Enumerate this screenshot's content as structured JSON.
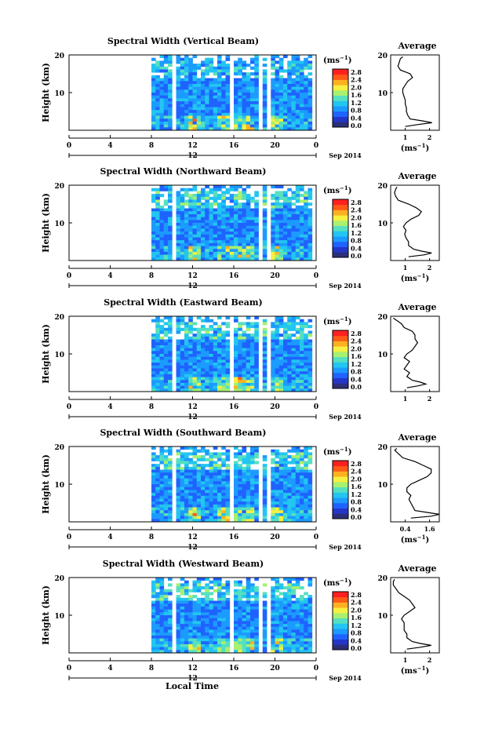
{
  "xlabel_bottom": "Local Time",
  "date_label": "Sep 2014",
  "colorbar": {
    "unit_base": "(ms",
    "unit_exp": "−1",
    "unit_close": ")",
    "ticks": [
      "2.8",
      "2.4",
      "2.0",
      "1.6",
      "1.2",
      "0.8",
      "0.4",
      "0.0"
    ],
    "colors": [
      "#2b2f7a",
      "#2436c8",
      "#1f63ff",
      "#1c9bff",
      "#22c6f0",
      "#56e0c0",
      "#a8f070",
      "#f6f040",
      "#ffb020",
      "#ff5a18",
      "#ff2020"
    ]
  },
  "chart_data": [
    {
      "type": "heatmap",
      "title": "Spectral Width (Vertical Beam)",
      "ylabel": "Height (km)",
      "x_ticks": [
        "0",
        "4",
        "8",
        "12",
        "16",
        "20",
        "0"
      ],
      "secondary_x_label": "12",
      "y_ticks": [
        "20",
        "10"
      ],
      "xlim": [
        0,
        24
      ],
      "ylim": [
        0,
        20
      ],
      "data_gaps_hours": [
        [
          10.2,
          10.5
        ],
        [
          15.6,
          15.9
        ],
        [
          18.4,
          18.7
        ],
        [
          19.2,
          19.5
        ]
      ],
      "data_start_hour": 7.9,
      "average_profile": {
        "title": "Average",
        "xlabel_base": "(ms",
        "xlabel_exp": "−1",
        "xlabel_close": ")",
        "x_ticks": [
          "1",
          "2"
        ],
        "y_ticks": [
          "20",
          "10"
        ],
        "xlim": [
          0.5,
          2.5
        ],
        "height_km": [
          1,
          1.5,
          2,
          2.5,
          3,
          4,
          5,
          6,
          7,
          8,
          9,
          10,
          11,
          12,
          13,
          14,
          15,
          16,
          17,
          18,
          19,
          19.5
        ],
        "value": [
          1.1,
          1.6,
          2.2,
          1.8,
          1.3,
          1.2,
          1.15,
          1.15,
          1.1,
          1.1,
          1.05,
          1.0,
          1.0,
          1.1,
          1.2,
          1.4,
          1.3,
          0.9,
          0.8,
          0.85,
          0.9,
          1.0
        ]
      }
    },
    {
      "type": "heatmap",
      "title": "Spectral Width (Northward Beam)",
      "ylabel": "Height (km)",
      "x_ticks": [
        "0",
        "4",
        "8",
        "12",
        "16",
        "20",
        "0"
      ],
      "secondary_x_label": "12",
      "y_ticks": [
        "20",
        "10"
      ],
      "xlim": [
        0,
        24
      ],
      "ylim": [
        0,
        20
      ],
      "data_gaps_hours": [
        [
          10.2,
          10.5
        ],
        [
          18.4,
          18.7
        ],
        [
          19.2,
          19.5
        ]
      ],
      "data_start_hour": 7.9,
      "average_profile": {
        "title": "Average",
        "xlabel_base": "(ms",
        "xlabel_exp": "−1",
        "xlabel_close": ")",
        "x_ticks": [
          "1",
          "2"
        ],
        "y_ticks": [
          "20",
          "10"
        ],
        "xlim": [
          0.3,
          2.2
        ],
        "height_km": [
          1,
          1.5,
          2,
          2.5,
          3,
          4,
          5,
          6,
          7,
          8,
          9,
          10,
          11,
          12,
          13,
          14,
          15,
          16,
          17,
          18,
          19,
          19.5
        ],
        "value": [
          1.0,
          1.6,
          1.9,
          1.5,
          1.2,
          1.0,
          1.0,
          0.9,
          0.85,
          0.9,
          0.8,
          0.9,
          1.1,
          1.4,
          1.5,
          1.3,
          1.0,
          0.6,
          0.5,
          0.45,
          0.5,
          0.55
        ]
      }
    },
    {
      "type": "heatmap",
      "title": "Spectral Width (Eastward Beam)",
      "ylabel": "Height (km)",
      "x_ticks": [
        "0",
        "4",
        "8",
        "12",
        "16",
        "20",
        "0"
      ],
      "secondary_x_label": "12",
      "y_ticks": [
        "20",
        "10"
      ],
      "xlim": [
        0,
        24
      ],
      "ylim": [
        0,
        20
      ],
      "data_gaps_hours": [
        [
          10.2,
          10.5
        ],
        [
          15.6,
          15.9
        ],
        [
          18.4,
          18.7
        ],
        [
          19.2,
          19.5
        ]
      ],
      "data_start_hour": 8.1,
      "average_profile": {
        "title": "Average",
        "xlabel_base": "",
        "xlabel_exp": "",
        "xlabel_close": "",
        "x_ticks": [
          "1",
          "2"
        ],
        "y_ticks": [
          "20",
          "10"
        ],
        "xlim": [
          0.4,
          2.2
        ],
        "height_km": [
          1,
          1.5,
          2,
          2.5,
          3,
          4,
          5,
          6,
          7,
          8,
          9,
          10,
          11,
          12,
          13,
          14,
          15,
          16,
          17,
          18,
          19,
          19.5
        ],
        "value": [
          1.0,
          1.4,
          1.7,
          1.5,
          1.2,
          1.0,
          1.1,
          0.9,
          1.0,
          1.1,
          0.9,
          1.0,
          1.2,
          1.3,
          1.4,
          1.3,
          1.3,
          1.2,
          0.9,
          0.8,
          0.6,
          0.5
        ]
      }
    },
    {
      "type": "heatmap",
      "title": "Spectral Width (Southward Beam)",
      "ylabel": "Height (km)",
      "x_ticks": [
        "0",
        "4",
        "8",
        "12",
        "16",
        "20",
        "0"
      ],
      "secondary_x_label": "12",
      "y_ticks": [
        "20",
        "10"
      ],
      "xlim": [
        0,
        24
      ],
      "ylim": [
        0,
        20
      ],
      "data_gaps_hours": [
        [
          10.2,
          10.5
        ],
        [
          15.6,
          15.9
        ],
        [
          18.4,
          18.7
        ],
        [
          19.2,
          19.5
        ]
      ],
      "data_start_hour": 7.9,
      "average_profile": {
        "title": "Average",
        "xlabel_base": "(ms",
        "xlabel_exp": "−1",
        "xlabel_close": ")",
        "x_ticks": [
          "0.4",
          "1.6"
        ],
        "y_ticks": [
          "20",
          "10"
        ],
        "xlim": [
          0.4,
          1.6
        ],
        "height_km": [
          1,
          1.5,
          2,
          2.5,
          3,
          4,
          5,
          6,
          7,
          8,
          9,
          10,
          11,
          12,
          13,
          14,
          15,
          16,
          17,
          18,
          19,
          19.5
        ],
        "value": [
          0.9,
          1.4,
          1.6,
          1.3,
          1.0,
          0.95,
          0.9,
          0.85,
          0.9,
          0.8,
          0.8,
          0.9,
          1.1,
          1.3,
          1.4,
          1.4,
          1.2,
          1.0,
          0.7,
          0.6,
          0.5,
          0.55
        ]
      }
    },
    {
      "type": "heatmap",
      "title": "Spectral Width (Westward Beam)",
      "ylabel": "Height (km)",
      "x_ticks": [
        "0",
        "4",
        "8",
        "12",
        "16",
        "20",
        "0"
      ],
      "secondary_x_label": "12",
      "y_ticks": [
        "20",
        "10"
      ],
      "xlim": [
        0,
        24
      ],
      "ylim": [
        0,
        20
      ],
      "data_gaps_hours": [
        [
          10.2,
          10.5
        ],
        [
          15.6,
          15.9
        ],
        [
          18.4,
          18.7
        ],
        [
          19.2,
          19.5
        ]
      ],
      "data_start_hour": 7.9,
      "average_profile": {
        "title": "Average",
        "xlabel_base": "(ms",
        "xlabel_exp": "−1",
        "xlabel_close": ")",
        "x_ticks": [
          "1",
          "2"
        ],
        "y_ticks": [
          "20",
          "10"
        ],
        "xlim": [
          0.5,
          2.3
        ],
        "height_km": [
          1,
          1.5,
          2,
          2.5,
          3,
          4,
          5,
          6,
          7,
          8,
          9,
          10,
          11,
          12,
          13,
          14,
          15,
          16,
          17,
          18,
          19,
          19.5
        ],
        "value": [
          1.1,
          1.6,
          2.0,
          1.6,
          1.3,
          1.1,
          1.1,
          1.0,
          1.0,
          1.0,
          0.9,
          1.0,
          1.2,
          1.4,
          1.3,
          1.2,
          1.0,
          0.8,
          0.7,
          0.6,
          0.6,
          0.65
        ]
      }
    }
  ]
}
